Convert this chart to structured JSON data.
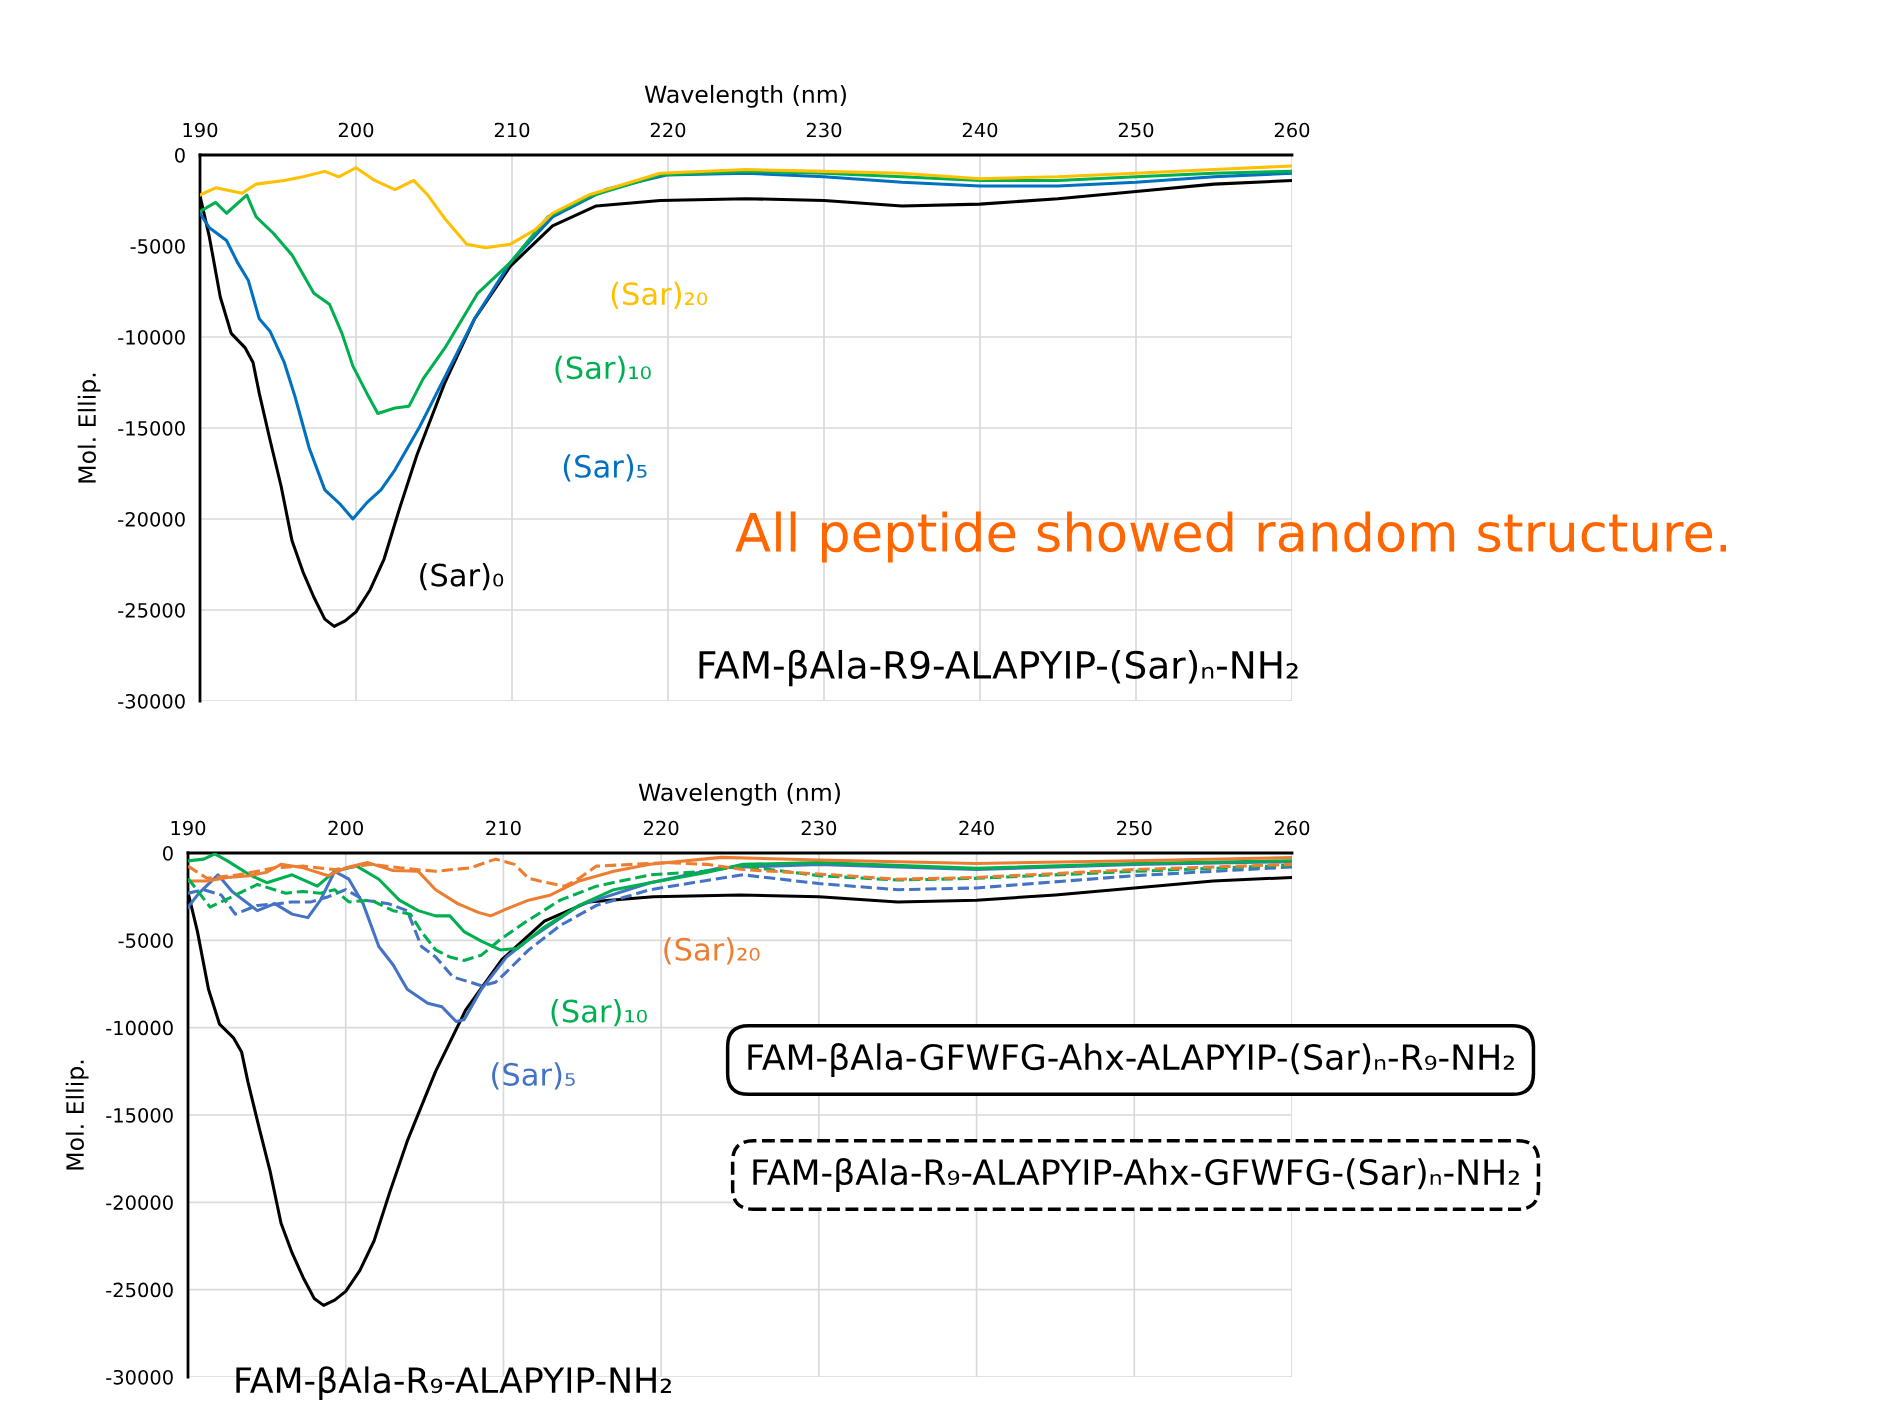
{
  "chart_data": [
    {
      "type": "line",
      "xlabel": "Wavelength (nm)",
      "ylabel": "Mol. Ellip.",
      "xlim": [
        190,
        260
      ],
      "xticks": [
        190,
        200,
        210,
        220,
        230,
        240,
        250,
        260
      ],
      "ylim": [
        -30000,
        0
      ],
      "yticks": [
        -30000,
        -25000,
        -20000,
        -15000,
        -10000,
        -5000,
        0
      ],
      "grid": true,
      "legend": false,
      "marker": "none",
      "line_style": "solid",
      "annotations": [
        "All peptide showed random structure.",
        "FAM-βAla-R9-ALAPYIP-(Sar)ₙ-NH₂"
      ],
      "series": [
        {
          "name": "(Sar)₀",
          "color": "#000000",
          "x": [
            190,
            190.6,
            191.3,
            192,
            192.9,
            193.4,
            193.8,
            194.5,
            195.2,
            195.9,
            196.6,
            197.3,
            198,
            198.6,
            199.3,
            200,
            200.9,
            201.8,
            202.8,
            203.9,
            205.7,
            207.6,
            209.9,
            212.6,
            215.4,
            219.5,
            225,
            230,
            235,
            240,
            245,
            250,
            255,
            260
          ],
          "values": [
            -2250,
            -4500,
            -7800,
            -9800,
            -10600,
            -11400,
            -13100,
            -15700,
            -18200,
            -21200,
            -22900,
            -24300,
            -25500,
            -25900,
            -25600,
            -25100,
            -23900,
            -22200,
            -19400,
            -16500,
            -12500,
            -9000,
            -6100,
            -3900,
            -2800,
            -2500,
            -2400,
            -2500,
            -2800,
            -2700,
            -2400,
            -2000,
            -1600,
            -1400
          ]
        },
        {
          "name": "(Sar)₅",
          "color": "#0070c0",
          "x": [
            190,
            190.6,
            191.7,
            192.4,
            193.1,
            193.8,
            194.5,
            195.4,
            196.1,
            197,
            198,
            199,
            199.8,
            200.7,
            201.6,
            202.5,
            204.1,
            205.7,
            207.6,
            209.9,
            212.6,
            216,
            219.9,
            225,
            230,
            235,
            240,
            245,
            250,
            255,
            260
          ],
          "values": [
            -3200,
            -4000,
            -4700,
            -5900,
            -6900,
            -9000,
            -9700,
            -11400,
            -13300,
            -16100,
            -18400,
            -19200,
            -20000,
            -19100,
            -18400,
            -17300,
            -14900,
            -12200,
            -9000,
            -5900,
            -3400,
            -1900,
            -1100,
            -1000,
            -1200,
            -1500,
            -1700,
            -1700,
            -1500,
            -1200,
            -1000
          ]
        },
        {
          "name": "(Sar)₁₀",
          "color": "#00b050",
          "x": [
            190,
            191,
            191.7,
            193,
            193.6,
            194.7,
            195.9,
            197.3,
            198.3,
            199.1,
            199.8,
            200.7,
            201.4,
            202.5,
            203.4,
            204.3,
            205.7,
            207.8,
            209.9,
            212.3,
            214.9,
            219.5,
            225,
            230,
            235,
            240,
            245,
            250,
            255,
            260
          ],
          "values": [
            -3100,
            -2600,
            -3200,
            -2200,
            -3400,
            -4300,
            -5500,
            -7600,
            -8200,
            -9800,
            -11600,
            -13100,
            -14200,
            -13900,
            -13800,
            -12300,
            -10600,
            -7600,
            -5900,
            -3400,
            -2300,
            -1100,
            -900,
            -1000,
            -1200,
            -1400,
            -1400,
            -1200,
            -1000,
            -900
          ]
        },
        {
          "name": "(Sar)₂₀",
          "color": "#ffc000",
          "x": [
            190,
            191,
            192.7,
            193.6,
            195.4,
            196.6,
            198,
            198.9,
            200,
            201.2,
            202.5,
            203.7,
            204.6,
            205.7,
            207.1,
            208.3,
            209.9,
            211.5,
            212.6,
            214.9,
            219.5,
            225,
            230,
            235,
            240,
            245,
            250,
            255,
            260
          ],
          "values": [
            -2200,
            -1800,
            -2100,
            -1600,
            -1400,
            -1200,
            -900,
            -1200,
            -700,
            -1400,
            -1900,
            -1400,
            -2200,
            -3500,
            -4900,
            -5100,
            -4900,
            -4100,
            -3200,
            -2200,
            -1000,
            -800,
            -900,
            -1000,
            -1300,
            -1200,
            -1000,
            -800,
            -600
          ]
        }
      ]
    },
    {
      "type": "line",
      "xlabel": "Wavelength (nm)",
      "ylabel": "Mol. Ellip.",
      "xlim": [
        190,
        260
      ],
      "xticks": [
        190,
        200,
        210,
        220,
        230,
        240,
        250,
        260
      ],
      "ylim": [
        -30000,
        0
      ],
      "yticks": [
        -30000,
        -25000,
        -20000,
        -15000,
        -10000,
        -5000,
        0
      ],
      "grid": true,
      "legend": false,
      "marker": "none",
      "line_style": "solid",
      "annotations": [
        "FAM-βAla-GFWFG-Ahx-ALAPYIP-(Sar)ₙ-R₉-NH₂",
        "FAM-βAla-R₉-ALAPYIP-Ahx-GFWFG-(Sar)ₙ-NH₂",
        "FAM-βAla-R₉-ALAPYIP-NH₂"
      ],
      "series": [
        {
          "color": "#000000",
          "x": [
            190,
            190.6,
            191.3,
            192,
            192.9,
            193.4,
            193.8,
            194.5,
            195.2,
            195.9,
            196.6,
            197.3,
            198,
            198.6,
            199.3,
            200,
            200.9,
            201.8,
            202.8,
            203.9,
            205.7,
            207.6,
            209.9,
            212.6,
            215.4,
            219.5,
            225,
            230,
            235,
            240,
            245,
            250,
            255,
            260
          ],
          "values": [
            -2250,
            -4500,
            -7800,
            -9800,
            -10600,
            -11400,
            -13100,
            -15700,
            -18200,
            -21200,
            -22900,
            -24300,
            -25500,
            -25900,
            -25600,
            -25100,
            -23900,
            -22200,
            -19400,
            -16500,
            -12500,
            -9000,
            -6100,
            -3900,
            -2800,
            -2500,
            -2400,
            -2500,
            -2800,
            -2700,
            -2400,
            -2000,
            -1600,
            -1400
          ]
        },
        {
          "name": "(Sar)₅",
          "color": "#4472c4",
          "x": [
            190,
            190.7,
            191.9,
            192.8,
            194.4,
            195.5,
            196.6,
            197.6,
            198.4,
            199.3,
            200.2,
            201.1,
            202.1,
            203,
            203.9,
            205.2,
            206.1,
            207,
            207.5,
            208.6,
            210.2,
            211.6,
            214.8,
            219.3,
            223.8,
            230,
            240,
            250,
            260
          ],
          "values": [
            -3100,
            -2300,
            -1250,
            -2200,
            -3300,
            -2900,
            -3500,
            -3700,
            -2700,
            -1050,
            -1500,
            -2900,
            -5350,
            -6400,
            -7800,
            -8600,
            -8800,
            -9650,
            -9550,
            -7800,
            -5950,
            -4950,
            -3000,
            -1700,
            -850,
            -650,
            -950,
            -650,
            -500
          ]
        },
        {
          "name": "(Sar)₁₀",
          "color": "#00b050",
          "x": [
            190,
            191,
            191.7,
            192.5,
            193.9,
            195,
            196.6,
            198.2,
            199.3,
            200.7,
            202.1,
            203.4,
            204.6,
            205.7,
            206.6,
            207.5,
            208.6,
            209.8,
            210.9,
            212.5,
            214.8,
            217,
            219.3,
            222.7,
            225.2,
            230,
            240,
            250,
            260
          ],
          "values": [
            -450,
            -350,
            -50,
            -450,
            -1250,
            -1700,
            -1250,
            -1900,
            -1050,
            -750,
            -1500,
            -2700,
            -3300,
            -3600,
            -3600,
            -4500,
            -5050,
            -5550,
            -5450,
            -4300,
            -3000,
            -2100,
            -1700,
            -1150,
            -650,
            -550,
            -880,
            -600,
            -440
          ]
        },
        {
          "name": "(Sar)₂₀",
          "color": "#ed7d31",
          "x": [
            190,
            191.2,
            192.5,
            193.9,
            195,
            195.9,
            197.3,
            198.9,
            200,
            201.4,
            203,
            204.6,
            205.7,
            207.1,
            208.4,
            209.2,
            210.2,
            211.6,
            213,
            214.8,
            217,
            219.3,
            223.8,
            230,
            240,
            250,
            260
          ],
          "values": [
            -1600,
            -1600,
            -1400,
            -1300,
            -1100,
            -650,
            -850,
            -1300,
            -850,
            -550,
            -1000,
            -1050,
            -2100,
            -2900,
            -3400,
            -3600,
            -3200,
            -2700,
            -2400,
            -1600,
            -1050,
            -650,
            -250,
            -400,
            -600,
            -440,
            -260
          ]
        },
        {
          "color": "#4472c4",
          "line_style": "dashed",
          "x": [
            190,
            191,
            192.1,
            193,
            194.4,
            195.7,
            196.6,
            197.8,
            198.9,
            200,
            201.2,
            202.7,
            203.9,
            204.8,
            205.7,
            206.8,
            207.9,
            208.6,
            209.5,
            210.2,
            211.6,
            213.6,
            215.9,
            219.3,
            222.7,
            225.2,
            230,
            235,
            240,
            250,
            260
          ],
          "values": [
            -2300,
            -2100,
            -2400,
            -3500,
            -3000,
            -2900,
            -2800,
            -2800,
            -2500,
            -2100,
            -2700,
            -2900,
            -3300,
            -5350,
            -5950,
            -7100,
            -7400,
            -7600,
            -7400,
            -6800,
            -5550,
            -4150,
            -3000,
            -2100,
            -1600,
            -1250,
            -1750,
            -2100,
            -2000,
            -1300,
            -800
          ]
        },
        {
          "color": "#00b050",
          "line_style": "dashed",
          "x": [
            190,
            191.4,
            192.8,
            194.4,
            196.2,
            197.3,
            198.4,
            199.3,
            200.2,
            201.6,
            203,
            204.1,
            204.8,
            205.7,
            206.6,
            207.5,
            208.6,
            209.8,
            211.4,
            213.6,
            215.9,
            219.3,
            222.7,
            225.2,
            230,
            235,
            240,
            250,
            260
          ],
          "values": [
            -1450,
            -3100,
            -2500,
            -1800,
            -2300,
            -2200,
            -2300,
            -2100,
            -2800,
            -2700,
            -3300,
            -3500,
            -4500,
            -5550,
            -5950,
            -6150,
            -5850,
            -4950,
            -3950,
            -2700,
            -1900,
            -1250,
            -1050,
            -750,
            -1300,
            -1550,
            -1450,
            -1050,
            -700
          ]
        },
        {
          "color": "#ed7d31",
          "line_style": "dashed",
          "x": [
            190,
            191.2,
            193.2,
            195.5,
            197.3,
            199.3,
            201.6,
            203.4,
            205.7,
            207.9,
            209.5,
            210.7,
            211.6,
            212.5,
            213.9,
            214.8,
            215.9,
            218.2,
            220.4,
            222.9,
            225.2,
            230,
            235,
            240,
            250,
            260
          ],
          "values": [
            -750,
            -1450,
            -1250,
            -850,
            -750,
            -950,
            -650,
            -850,
            -1050,
            -850,
            -350,
            -650,
            -1450,
            -1650,
            -1900,
            -1450,
            -750,
            -650,
            -550,
            -650,
            -950,
            -1200,
            -1500,
            -1400,
            -950,
            -650
          ]
        }
      ]
    }
  ]
}
